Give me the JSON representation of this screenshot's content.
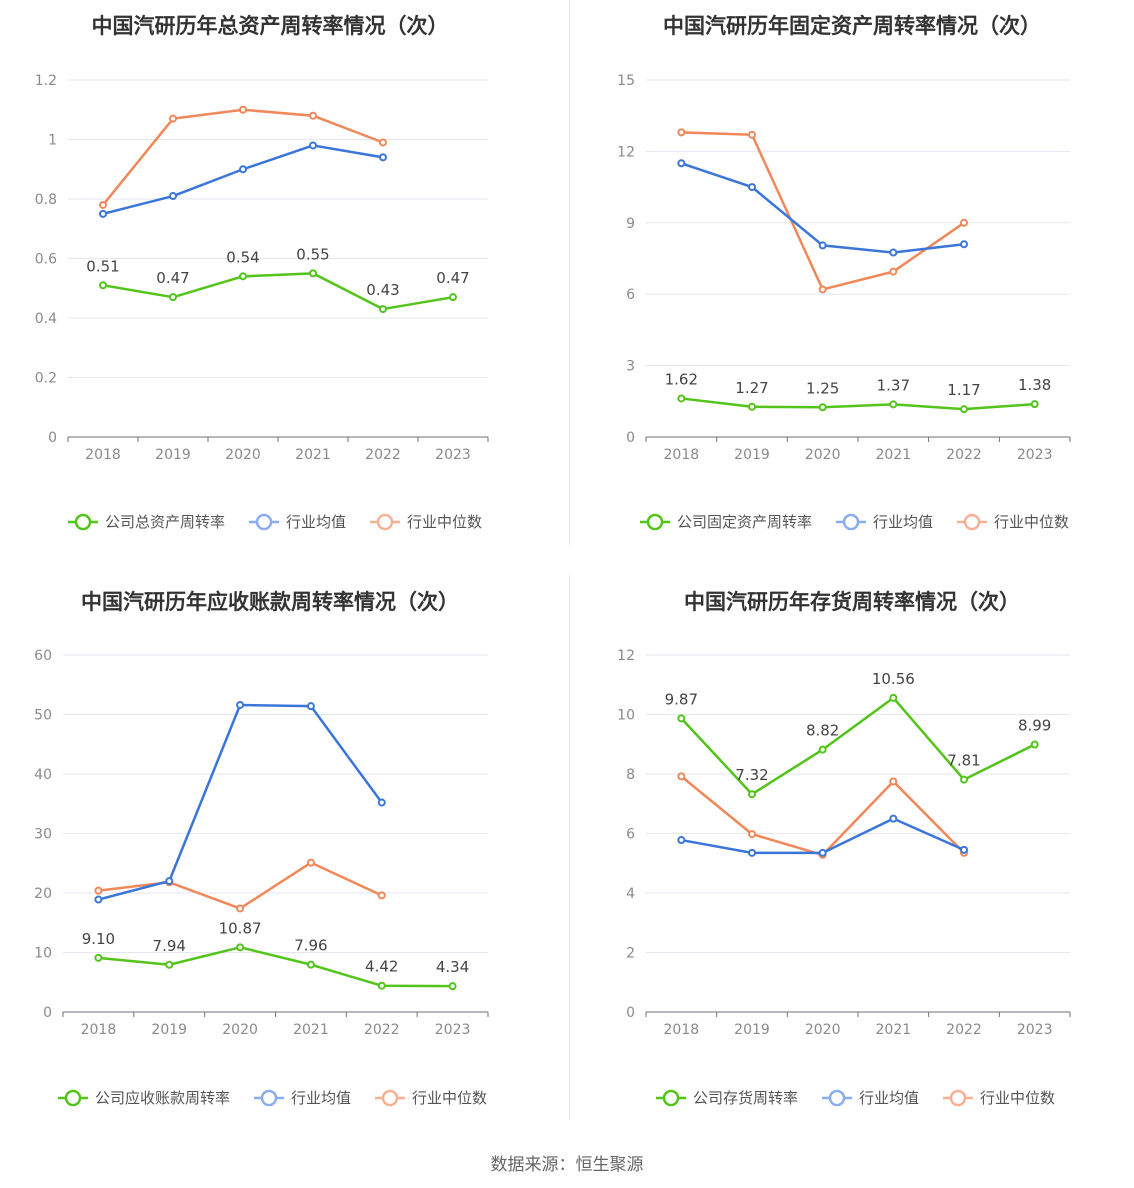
{
  "footer": "数据来源：恒生聚源",
  "colors": {
    "company": "#52c41a",
    "avg": "#3a75d9",
    "median": "#f0885a",
    "legend_avg": "#8cacf0",
    "legend_median": "#f7b093"
  },
  "chart_data": [
    {
      "type": "line",
      "title": "中国汽研历年总资产周转率情况（次）",
      "categories": [
        "2018",
        "2019",
        "2020",
        "2021",
        "2022",
        "2023"
      ],
      "yticks": [
        "0",
        "0.2",
        "0.4",
        "0.6",
        "0.8",
        "1",
        "1.2"
      ],
      "ylim": [
        0,
        1.2
      ],
      "grid": true,
      "legend_position": "bottom",
      "series": [
        {
          "name": "公司总资产周转率",
          "role": "company",
          "values": [
            0.51,
            0.47,
            0.54,
            0.55,
            0.43,
            0.47
          ],
          "labels": [
            "0.51",
            "0.47",
            "0.54",
            "0.55",
            "0.43",
            "0.47"
          ]
        },
        {
          "name": "行业均值",
          "role": "avg",
          "values": [
            0.75,
            0.81,
            0.9,
            0.98,
            0.94,
            null
          ]
        },
        {
          "name": "行业中位数",
          "role": "median",
          "values": [
            0.78,
            1.07,
            1.1,
            1.08,
            0.99,
            null
          ]
        }
      ]
    },
    {
      "type": "line",
      "title": "中国汽研历年固定资产周转率情况（次）",
      "categories": [
        "2018",
        "2019",
        "2020",
        "2021",
        "2022",
        "2023"
      ],
      "yticks": [
        "0",
        "3",
        "6",
        "9",
        "12",
        "15"
      ],
      "ylim": [
        0,
        15
      ],
      "grid": true,
      "legend_position": "bottom",
      "series": [
        {
          "name": "公司固定资产周转率",
          "role": "company",
          "values": [
            1.62,
            1.27,
            1.25,
            1.37,
            1.17,
            1.38
          ],
          "labels": [
            "1.62",
            "1.27",
            "1.25",
            "1.37",
            "1.17",
            "1.38"
          ]
        },
        {
          "name": "行业均值",
          "role": "avg",
          "values": [
            11.5,
            10.5,
            8.05,
            7.75,
            8.1,
            null
          ]
        },
        {
          "name": "行业中位数",
          "role": "median",
          "values": [
            12.8,
            12.7,
            6.2,
            6.95,
            9.0,
            null
          ]
        }
      ]
    },
    {
      "type": "line",
      "title": "中国汽研历年应收账款周转率情况（次）",
      "categories": [
        "2018",
        "2019",
        "2020",
        "2021",
        "2022",
        "2023"
      ],
      "yticks": [
        "0",
        "10",
        "20",
        "30",
        "40",
        "50",
        "60"
      ],
      "ylim": [
        0,
        60
      ],
      "grid": true,
      "legend_position": "bottom",
      "series": [
        {
          "name": "公司应收账款周转率",
          "role": "company",
          "values": [
            9.1,
            7.94,
            10.87,
            7.96,
            4.42,
            4.34
          ],
          "labels": [
            "9.10",
            "7.94",
            "10.87",
            "7.96",
            "4.42",
            "4.34"
          ]
        },
        {
          "name": "行业均值",
          "role": "avg",
          "values": [
            18.9,
            22.0,
            51.6,
            51.4,
            35.2,
            null
          ]
        },
        {
          "name": "行业中位数",
          "role": "median",
          "values": [
            20.4,
            21.8,
            17.4,
            25.1,
            19.6,
            null
          ]
        }
      ]
    },
    {
      "type": "line",
      "title": "中国汽研历年存货周转率情况（次）",
      "categories": [
        "2018",
        "2019",
        "2020",
        "2021",
        "2022",
        "2023"
      ],
      "yticks": [
        "0",
        "2",
        "4",
        "6",
        "8",
        "10",
        "12"
      ],
      "ylim": [
        0,
        12
      ],
      "grid": true,
      "legend_position": "bottom",
      "series": [
        {
          "name": "公司存货周转率",
          "role": "company",
          "values": [
            9.87,
            7.32,
            8.82,
            10.56,
            7.81,
            8.99
          ],
          "labels": [
            "9.87",
            "7.32",
            "8.82",
            "10.56",
            "7.81",
            "8.99"
          ]
        },
        {
          "name": "行业均值",
          "role": "avg",
          "values": [
            5.78,
            5.35,
            5.35,
            6.5,
            5.45,
            null
          ]
        },
        {
          "name": "行业中位数",
          "role": "median",
          "values": [
            7.92,
            5.98,
            5.28,
            7.75,
            5.35,
            null
          ]
        }
      ]
    }
  ]
}
